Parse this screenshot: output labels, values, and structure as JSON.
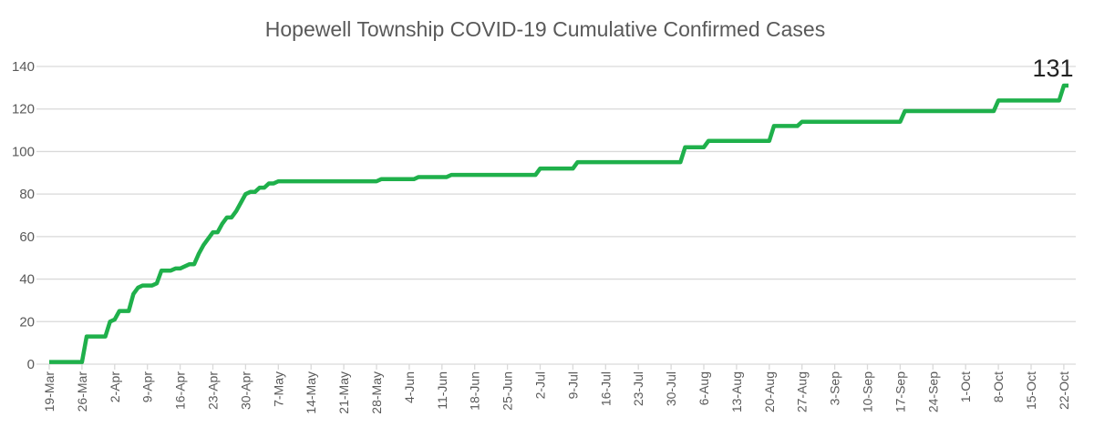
{
  "chart_data": {
    "type": "line",
    "title": "Hopewell Township COVID-19 Cumulative Confirmed Cases",
    "xlabel": "",
    "ylabel": "",
    "x_start_date": "19-Mar",
    "x_unit": "days since 19-Mar",
    "ylim": [
      0,
      140
    ],
    "yticks": [
      0,
      20,
      40,
      60,
      80,
      100,
      120,
      140
    ],
    "grid": true,
    "legend": "none",
    "xtick_labels": [
      "19-Mar",
      "26-Mar",
      "2-Apr",
      "9-Apr",
      "16-Apr",
      "23-Apr",
      "30-Apr",
      "7-May",
      "14-May",
      "21-May",
      "28-May",
      "4-Jun",
      "11-Jun",
      "18-Jun",
      "25-Jun",
      "2-Jul",
      "9-Jul",
      "16-Jul",
      "23-Jul",
      "30-Jul",
      "6-Aug",
      "13-Aug",
      "20-Aug",
      "27-Aug",
      "3-Sep",
      "10-Sep",
      "17-Sep",
      "24-Sep",
      "1-Oct",
      "8-Oct",
      "15-Oct",
      "22-Oct"
    ],
    "xtick_interval_days": 7,
    "x_end_day": 218,
    "series": [
      {
        "name": "Cumulative Confirmed Cases",
        "color": "#1fb04b",
        "steps": [
          [
            0,
            1
          ],
          [
            8,
            13
          ],
          [
            13,
            20
          ],
          [
            14,
            21
          ],
          [
            15,
            25
          ],
          [
            18,
            33
          ],
          [
            19,
            36
          ],
          [
            20,
            37
          ],
          [
            23,
            38
          ],
          [
            24,
            44
          ],
          [
            27,
            45
          ],
          [
            29,
            46
          ],
          [
            30,
            47
          ],
          [
            31,
            47
          ],
          [
            32,
            52
          ],
          [
            33,
            56
          ],
          [
            34,
            59
          ],
          [
            35,
            62
          ],
          [
            37,
            66
          ],
          [
            38,
            69
          ],
          [
            40,
            72
          ],
          [
            41,
            76
          ],
          [
            42,
            80
          ],
          [
            43,
            81
          ],
          [
            45,
            83
          ],
          [
            47,
            85
          ],
          [
            49,
            86
          ],
          [
            71,
            87
          ],
          [
            79,
            88
          ],
          [
            86,
            89
          ],
          [
            105,
            92
          ],
          [
            113,
            95
          ],
          [
            136,
            102
          ],
          [
            141,
            105
          ],
          [
            155,
            112
          ],
          [
            161,
            114
          ],
          [
            183,
            119
          ],
          [
            203,
            124
          ],
          [
            217,
            131
          ]
        ]
      }
    ],
    "annotations": [
      {
        "text": "131",
        "at_day": 218,
        "value": 131
      }
    ]
  }
}
